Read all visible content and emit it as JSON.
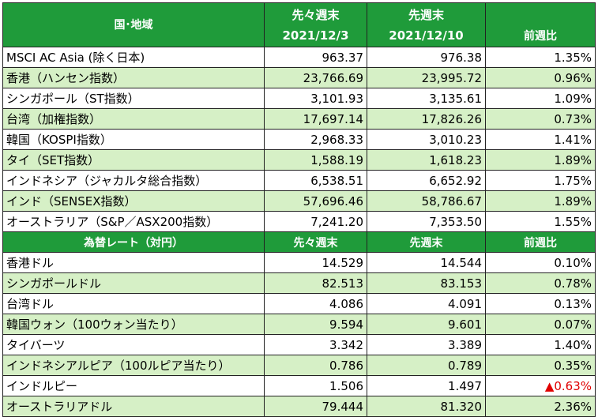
{
  "indices": {
    "headers": {
      "region": "国･地域",
      "prev2_label": "先々週末",
      "prev2_date": "2021/12/3",
      "prev1_label": "先週末",
      "prev1_date": "2021/12/10",
      "change": "前週比"
    },
    "rows": [
      {
        "name": "MSCI AC Asia (除く日本)",
        "prev2": "963.37",
        "prev1": "976.38",
        "change": "1.35%"
      },
      {
        "name": "香港（ハンセン指数）",
        "prev2": "23,766.69",
        "prev1": "23,995.72",
        "change": "0.96%"
      },
      {
        "name": "シンガポール（ST指数）",
        "prev2": "3,101.93",
        "prev1": "3,135.61",
        "change": "1.09%"
      },
      {
        "name": "台湾（加権指数）",
        "prev2": "17,697.14",
        "prev1": "17,826.26",
        "change": "0.73%"
      },
      {
        "name": "韓国（KOSPI指数）",
        "prev2": "2,968.33",
        "prev1": "3,010.23",
        "change": "1.41%"
      },
      {
        "name": "タイ（SET指数）",
        "prev2": "1,588.19",
        "prev1": "1,618.23",
        "change": "1.89%"
      },
      {
        "name": "インドネシア（ジャカルタ総合指数）",
        "prev2": "6,538.51",
        "prev1": "6,652.92",
        "change": "1.75%"
      },
      {
        "name": "インド（SENSEX指数）",
        "prev2": "57,696.46",
        "prev1": "58,786.67",
        "change": "1.89%"
      },
      {
        "name": "オーストラリア（S&P／ASX200指数）",
        "prev2": "7,241.20",
        "prev1": "7,353.50",
        "change": "1.55%"
      }
    ]
  },
  "fx": {
    "headers": {
      "title": "為替レート（対円）",
      "prev2_label": "先々週末",
      "prev1_label": "先週末",
      "change": "前週比"
    },
    "rows": [
      {
        "name": "香港ドル",
        "prev2": "14.529",
        "prev1": "14.544",
        "change": "0.10%"
      },
      {
        "name": "シンガポールドル",
        "prev2": "82.513",
        "prev1": "83.153",
        "change": "0.78%"
      },
      {
        "name": "台湾ドル",
        "prev2": "4.086",
        "prev1": "4.091",
        "change": "0.13%"
      },
      {
        "name": "韓国ウォン（100ウォン当たり）",
        "prev2": "9.594",
        "prev1": "9.601",
        "change": "0.07%"
      },
      {
        "name": "タイバーツ",
        "prev2": "3.342",
        "prev1": "3.389",
        "change": "1.40%"
      },
      {
        "name": "インドネシアルピア（100ルピア当たり）",
        "prev2": "0.786",
        "prev1": "0.789",
        "change": "0.35%"
      },
      {
        "name": "インドルピー",
        "prev2": "1.506",
        "prev1": "1.497",
        "change": "▲0.63%"
      },
      {
        "name": "オーストラリアドル",
        "prev2": "79.444",
        "prev1": "81.320",
        "change": "2.36%"
      }
    ]
  },
  "colors": {
    "header_green": "#1f9b3a",
    "alt_row_green": "#d6f0c6",
    "negative_red": "#e00000"
  }
}
